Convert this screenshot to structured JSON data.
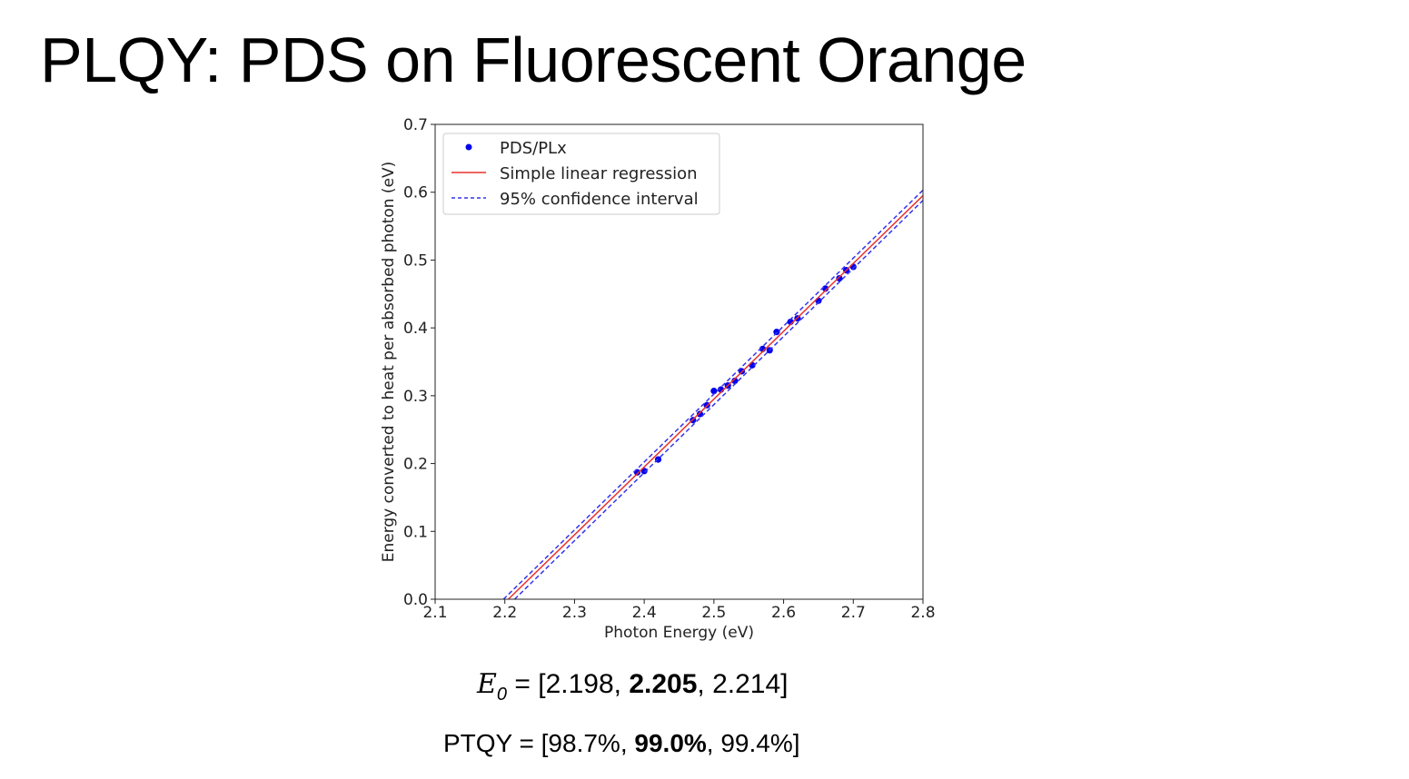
{
  "slide": {
    "title": "PLQY: PDS on Fluorescent Orange"
  },
  "formula": {
    "symbol": "E",
    "subscript": "0",
    "equals": "=",
    "open": "[",
    "low": "2.198",
    "sep1": ", ",
    "mid": "2.205",
    "sep2": ", ",
    "high": "2.214",
    "close": "]"
  },
  "ptqy": {
    "label": "PTQY = [",
    "low": "98.7%",
    "sep1": ", ",
    "mid": "99.0%",
    "sep2": ", ",
    "high": "99.4%",
    "close": "]"
  },
  "chart_data": {
    "type": "scatter",
    "xlabel": "Photon Energy (eV)",
    "ylabel": "Energy converted to heat per absorbed photon (eV)",
    "xlim": [
      2.1,
      2.8
    ],
    "ylim": [
      0.0,
      0.7
    ],
    "xticks": [
      "2.1",
      "2.2",
      "2.3",
      "2.4",
      "2.5",
      "2.6",
      "2.7",
      "2.8"
    ],
    "yticks": [
      "0.0",
      "0.1",
      "0.2",
      "0.3",
      "0.4",
      "0.5",
      "0.6",
      "0.7"
    ],
    "grid": false,
    "legend_position": "top-left",
    "colors": {
      "points": "#0000ee",
      "fit": "#e8322e",
      "ci": "#3434ee"
    },
    "series": [
      {
        "name": "PDS/PLx",
        "kind": "points",
        "x": [
          2.39,
          2.4,
          2.42,
          2.47,
          2.48,
          2.49,
          2.5,
          2.51,
          2.52,
          2.53,
          2.54,
          2.555,
          2.57,
          2.58,
          2.59,
          2.61,
          2.62,
          2.65,
          2.66,
          2.68,
          2.69,
          2.7
        ],
        "y": [
          0.187,
          0.189,
          0.206,
          0.264,
          0.273,
          0.286,
          0.307,
          0.309,
          0.315,
          0.322,
          0.336,
          0.345,
          0.369,
          0.367,
          0.394,
          0.409,
          0.414,
          0.44,
          0.458,
          0.473,
          0.485,
          0.49
        ]
      },
      {
        "name": "Simple linear regression",
        "kind": "line",
        "x": [
          2.205,
          2.8
        ],
        "y": [
          0.0,
          0.595
        ]
      },
      {
        "name": "95% confidence interval",
        "kind": "dashed",
        "x": [
          2.198,
          2.8
        ],
        "y": [
          0.0,
          0.603
        ]
      },
      {
        "name": "",
        "kind": "dashed",
        "x": [
          2.214,
          2.8
        ],
        "y": [
          0.0,
          0.588
        ]
      }
    ]
  }
}
